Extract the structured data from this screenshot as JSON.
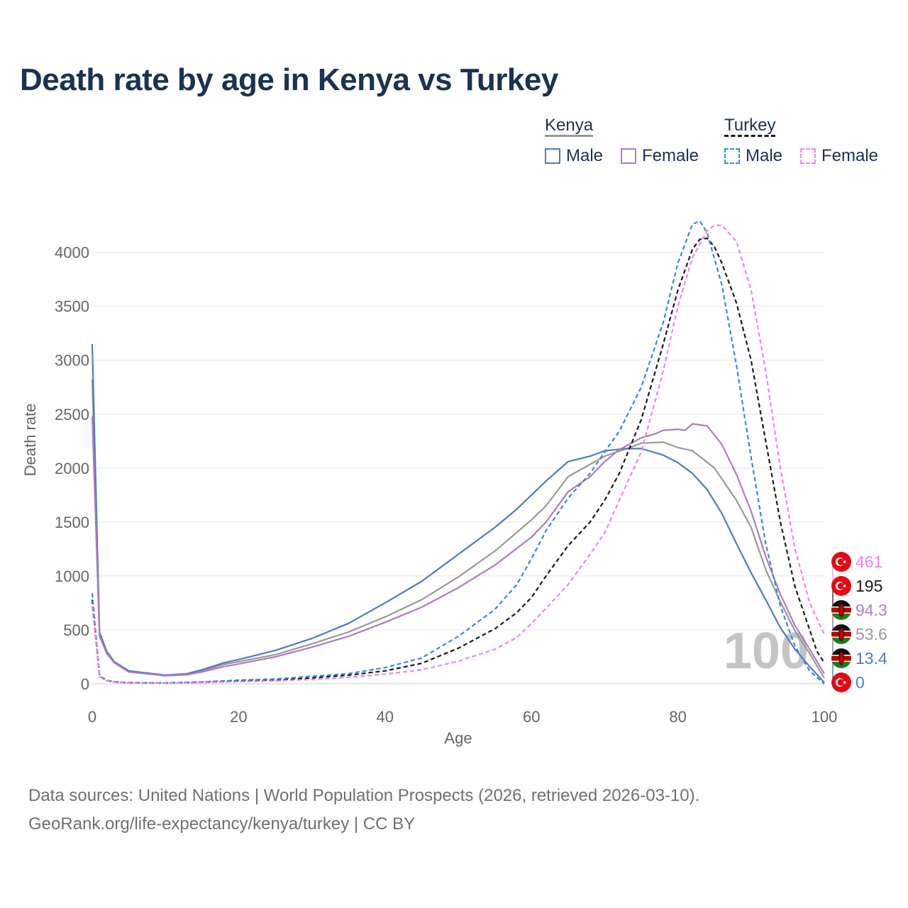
{
  "title": "Death rate by age in Kenya vs Turkey",
  "legend": {
    "kenya_label": "Kenya",
    "turkey_label": "Turkey",
    "kenya_male": "Male",
    "kenya_female": "Female",
    "turkey_male": "Male",
    "turkey_female": "Female"
  },
  "footer": {
    "line1": "Data sources: United Nations | World Population Prospects (2026, retrieved 2026-03-10).",
    "line2": "GeoRank.org/life-expectancy/kenya/turkey | CC BY"
  },
  "colors": {
    "kenya_male": "#4f7cc2",
    "kenya_female": "#b07cbe",
    "kenya_total": "#999999",
    "turkey_male": "#3a87e0",
    "turkey_female": "#f583e3",
    "turkey_total": "#1a1a1a",
    "title": "#1b3252"
  },
  "chart_data": {
    "type": "line",
    "title": "Death rate by age in Kenya vs Turkey",
    "xlabel": "Age",
    "ylabel": "Death rate",
    "xlim": [
      0,
      100
    ],
    "ylim": [
      0,
      4300
    ],
    "x_ticks": [
      "0",
      "20",
      "40",
      "60",
      "80",
      "100"
    ],
    "y_ticks": [
      "0",
      "500",
      "1000",
      "1500",
      "2000",
      "2500",
      "3000",
      "3500",
      "4000"
    ],
    "highlight_label": "100",
    "series": [
      {
        "name": "Kenya Total",
        "country": "Kenya",
        "style": "solid",
        "color_key": "kenya_total",
        "points": [
          [
            0,
            2820
          ],
          [
            1,
            470
          ],
          [
            2,
            290
          ],
          [
            3,
            200
          ],
          [
            5,
            115
          ],
          [
            10,
            80
          ],
          [
            13,
            90
          ],
          [
            15,
            120
          ],
          [
            18,
            180
          ],
          [
            20,
            205
          ],
          [
            25,
            270
          ],
          [
            30,
            370
          ],
          [
            35,
            480
          ],
          [
            40,
            620
          ],
          [
            45,
            780
          ],
          [
            50,
            990
          ],
          [
            55,
            1230
          ],
          [
            60,
            1520
          ],
          [
            62,
            1650
          ],
          [
            65,
            1920
          ],
          [
            70,
            2110
          ],
          [
            73,
            2180
          ],
          [
            75,
            2230
          ],
          [
            78,
            2240
          ],
          [
            80,
            2190
          ],
          [
            82,
            2160
          ],
          [
            85,
            2000
          ],
          [
            88,
            1700
          ],
          [
            90,
            1450
          ],
          [
            92,
            1060
          ],
          [
            94,
            760
          ],
          [
            96,
            490
          ],
          [
            98,
            280
          ],
          [
            100,
            53.6
          ]
        ],
        "end_value": "53.6"
      },
      {
        "name": "Kenya Male",
        "country": "Kenya",
        "style": "solid",
        "color_key": "kenya_male",
        "points": [
          [
            0,
            3150
          ],
          [
            1,
            480
          ],
          [
            2,
            300
          ],
          [
            3,
            205
          ],
          [
            5,
            120
          ],
          [
            10,
            80
          ],
          [
            13,
            95
          ],
          [
            15,
            130
          ],
          [
            18,
            195
          ],
          [
            20,
            225
          ],
          [
            25,
            310
          ],
          [
            30,
            420
          ],
          [
            35,
            560
          ],
          [
            40,
            750
          ],
          [
            45,
            950
          ],
          [
            50,
            1200
          ],
          [
            55,
            1450
          ],
          [
            58,
            1620
          ],
          [
            60,
            1750
          ],
          [
            62,
            1880
          ],
          [
            65,
            2060
          ],
          [
            68,
            2110
          ],
          [
            70,
            2160
          ],
          [
            73,
            2180
          ],
          [
            75,
            2180
          ],
          [
            78,
            2120
          ],
          [
            80,
            2050
          ],
          [
            82,
            1950
          ],
          [
            84,
            1800
          ],
          [
            86,
            1580
          ],
          [
            88,
            1300
          ],
          [
            90,
            1030
          ],
          [
            92,
            780
          ],
          [
            94,
            520
          ],
          [
            96,
            320
          ],
          [
            98,
            160
          ],
          [
            100,
            13.4
          ]
        ],
        "end_value": "13.4"
      },
      {
        "name": "Kenya Female",
        "country": "Kenya",
        "style": "solid",
        "color_key": "kenya_female",
        "points": [
          [
            0,
            2480
          ],
          [
            1,
            440
          ],
          [
            2,
            280
          ],
          [
            3,
            195
          ],
          [
            5,
            110
          ],
          [
            10,
            75
          ],
          [
            13,
            85
          ],
          [
            15,
            110
          ],
          [
            18,
            160
          ],
          [
            20,
            185
          ],
          [
            25,
            250
          ],
          [
            30,
            340
          ],
          [
            35,
            440
          ],
          [
            40,
            570
          ],
          [
            45,
            710
          ],
          [
            50,
            890
          ],
          [
            55,
            1100
          ],
          [
            60,
            1360
          ],
          [
            62,
            1500
          ],
          [
            65,
            1780
          ],
          [
            68,
            1920
          ],
          [
            70,
            2060
          ],
          [
            72,
            2170
          ],
          [
            75,
            2280
          ],
          [
            77,
            2320
          ],
          [
            78,
            2350
          ],
          [
            80,
            2360
          ],
          [
            81,
            2350
          ],
          [
            82,
            2410
          ],
          [
            84,
            2390
          ],
          [
            86,
            2220
          ],
          [
            88,
            1940
          ],
          [
            90,
            1600
          ],
          [
            92,
            1180
          ],
          [
            94,
            830
          ],
          [
            96,
            540
          ],
          [
            98,
            320
          ],
          [
            100,
            94.3
          ]
        ],
        "end_value": "94.3"
      },
      {
        "name": "Turkey Total",
        "country": "Turkey",
        "style": "dashed",
        "color_key": "turkey_total",
        "points": [
          [
            0,
            780
          ],
          [
            1,
            70
          ],
          [
            2,
            30
          ],
          [
            3,
            18
          ],
          [
            5,
            10
          ],
          [
            10,
            8
          ],
          [
            15,
            15
          ],
          [
            20,
            28
          ],
          [
            25,
            35
          ],
          [
            30,
            55
          ],
          [
            35,
            80
          ],
          [
            40,
            120
          ],
          [
            45,
            190
          ],
          [
            50,
            330
          ],
          [
            55,
            510
          ],
          [
            58,
            660
          ],
          [
            60,
            800
          ],
          [
            62,
            1000
          ],
          [
            65,
            1280
          ],
          [
            68,
            1500
          ],
          [
            70,
            1700
          ],
          [
            72,
            1950
          ],
          [
            75,
            2450
          ],
          [
            78,
            3150
          ],
          [
            80,
            3650
          ],
          [
            82,
            4030
          ],
          [
            83,
            4120
          ],
          [
            84,
            4130
          ],
          [
            85,
            4050
          ],
          [
            86,
            3900
          ],
          [
            88,
            3530
          ],
          [
            90,
            3000
          ],
          [
            92,
            2250
          ],
          [
            94,
            1500
          ],
          [
            96,
            900
          ],
          [
            98,
            500
          ],
          [
            99,
            300
          ],
          [
            100,
            195
          ]
        ],
        "end_value": "195"
      },
      {
        "name": "Turkey Male",
        "country": "Turkey",
        "style": "dashed",
        "color_key": "turkey_male",
        "points": [
          [
            0,
            840
          ],
          [
            1,
            75
          ],
          [
            2,
            32
          ],
          [
            3,
            20
          ],
          [
            5,
            12
          ],
          [
            10,
            9
          ],
          [
            15,
            18
          ],
          [
            20,
            35
          ],
          [
            25,
            45
          ],
          [
            30,
            70
          ],
          [
            35,
            95
          ],
          [
            40,
            150
          ],
          [
            45,
            240
          ],
          [
            50,
            440
          ],
          [
            55,
            690
          ],
          [
            58,
            920
          ],
          [
            60,
            1160
          ],
          [
            62,
            1420
          ],
          [
            65,
            1720
          ],
          [
            68,
            1950
          ],
          [
            70,
            2150
          ],
          [
            72,
            2340
          ],
          [
            75,
            2750
          ],
          [
            78,
            3350
          ],
          [
            80,
            3900
          ],
          [
            82,
            4260
          ],
          [
            83,
            4290
          ],
          [
            84,
            4180
          ],
          [
            86,
            3700
          ],
          [
            88,
            2950
          ],
          [
            90,
            2100
          ],
          [
            92,
            1300
          ],
          [
            94,
            720
          ],
          [
            96,
            350
          ],
          [
            98,
            120
          ],
          [
            100,
            0
          ]
        ],
        "end_value": "0"
      },
      {
        "name": "Turkey Female",
        "country": "Turkey",
        "style": "dashed",
        "color_key": "turkey_female",
        "points": [
          [
            0,
            720
          ],
          [
            1,
            65
          ],
          [
            2,
            28
          ],
          [
            3,
            16
          ],
          [
            5,
            9
          ],
          [
            10,
            7
          ],
          [
            15,
            12
          ],
          [
            20,
            20
          ],
          [
            25,
            28
          ],
          [
            30,
            40
          ],
          [
            35,
            60
          ],
          [
            40,
            90
          ],
          [
            45,
            130
          ],
          [
            50,
            210
          ],
          [
            55,
            320
          ],
          [
            58,
            430
          ],
          [
            60,
            560
          ],
          [
            62,
            700
          ],
          [
            65,
            920
          ],
          [
            68,
            1200
          ],
          [
            70,
            1400
          ],
          [
            72,
            1700
          ],
          [
            75,
            2150
          ],
          [
            78,
            2900
          ],
          [
            80,
            3500
          ],
          [
            82,
            3950
          ],
          [
            84,
            4200
          ],
          [
            85,
            4250
          ],
          [
            86,
            4250
          ],
          [
            88,
            4100
          ],
          [
            90,
            3650
          ],
          [
            92,
            2900
          ],
          [
            94,
            2000
          ],
          [
            96,
            1250
          ],
          [
            98,
            750
          ],
          [
            99,
            600
          ],
          [
            100,
            461
          ]
        ],
        "end_value": "461"
      }
    ]
  }
}
